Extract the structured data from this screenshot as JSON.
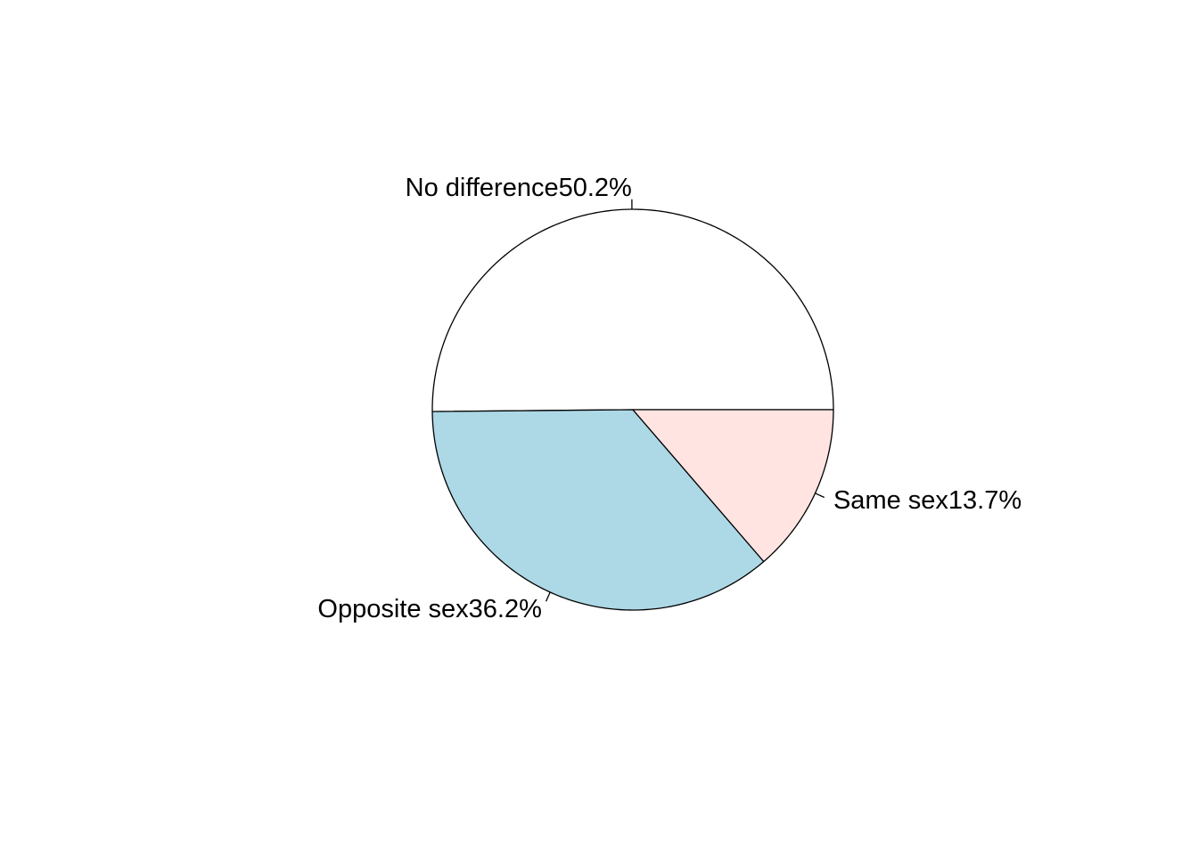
{
  "chart_data": {
    "type": "pie",
    "title": "",
    "direction": "counter-clockwise",
    "start_angle_deg": 0,
    "slices": [
      {
        "label": "No difference50.2%",
        "category": "No difference",
        "percent": 50.2,
        "color": "#ffffff"
      },
      {
        "label": "Opposite sex36.2%",
        "category": "Opposite sex",
        "percent": 36.2,
        "color": "#add8e6"
      },
      {
        "label": "Same sex13.7%",
        "category": "Same sex",
        "percent": 13.7,
        "color": "#ffe4e1"
      }
    ]
  }
}
